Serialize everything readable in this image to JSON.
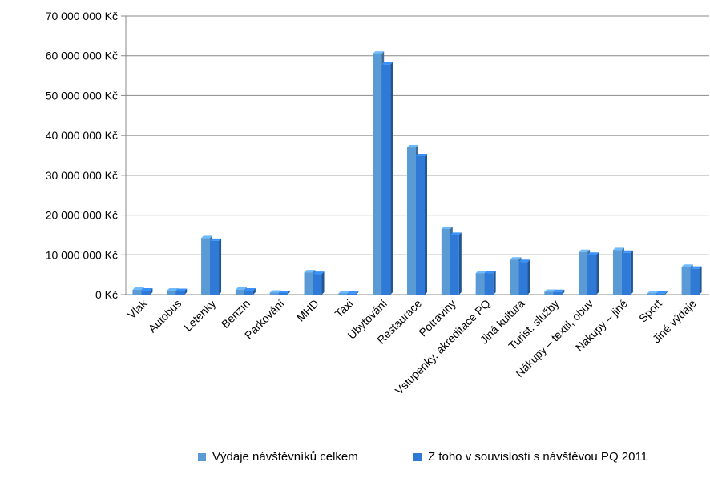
{
  "chart_data": {
    "type": "bar",
    "categories": [
      "Vlak",
      "Autobus",
      "Letenky",
      "Benzín",
      "Parkování",
      "MHD",
      "Taxi",
      "Ubytování",
      "Restaurace",
      "Potraviny",
      "Vstupenky, akreditace PQ",
      "Jiná kultura",
      "Turist. služby",
      "Nákupy – textil, obuv",
      "Nákupy – jiné",
      "Sport",
      "Jiné výdaje"
    ],
    "series": [
      {
        "name": "Výdaje návštěvníků celkem",
        "color": "#5b9bd5",
        "values": [
          1200000,
          1000000,
          14200000,
          1200000,
          500000,
          5600000,
          300000,
          60500000,
          37000000,
          16500000,
          5400000,
          8800000,
          700000,
          10700000,
          11200000,
          300000,
          7000000
        ]
      },
      {
        "name": "Z toho v souvislosti s návštěvou PQ 2011",
        "color": "#2e7ad6",
        "values": [
          1000000,
          900000,
          13500000,
          1000000,
          400000,
          5200000,
          250000,
          57800000,
          34800000,
          15000000,
          5400000,
          8200000,
          650000,
          10000000,
          10500000,
          250000,
          6500000
        ]
      }
    ],
    "y_ticks": [
      "0 Kč",
      "10 000 000 Kč",
      "20 000 000 Kč",
      "30 000 000 Kč",
      "40 000 000 Kč",
      "50 000 000 Kč",
      "60 000 000 Kč",
      "70 000 000 Kč"
    ],
    "ylim": [
      0,
      70000000
    ],
    "grid": true,
    "legend_position": "bottom"
  }
}
